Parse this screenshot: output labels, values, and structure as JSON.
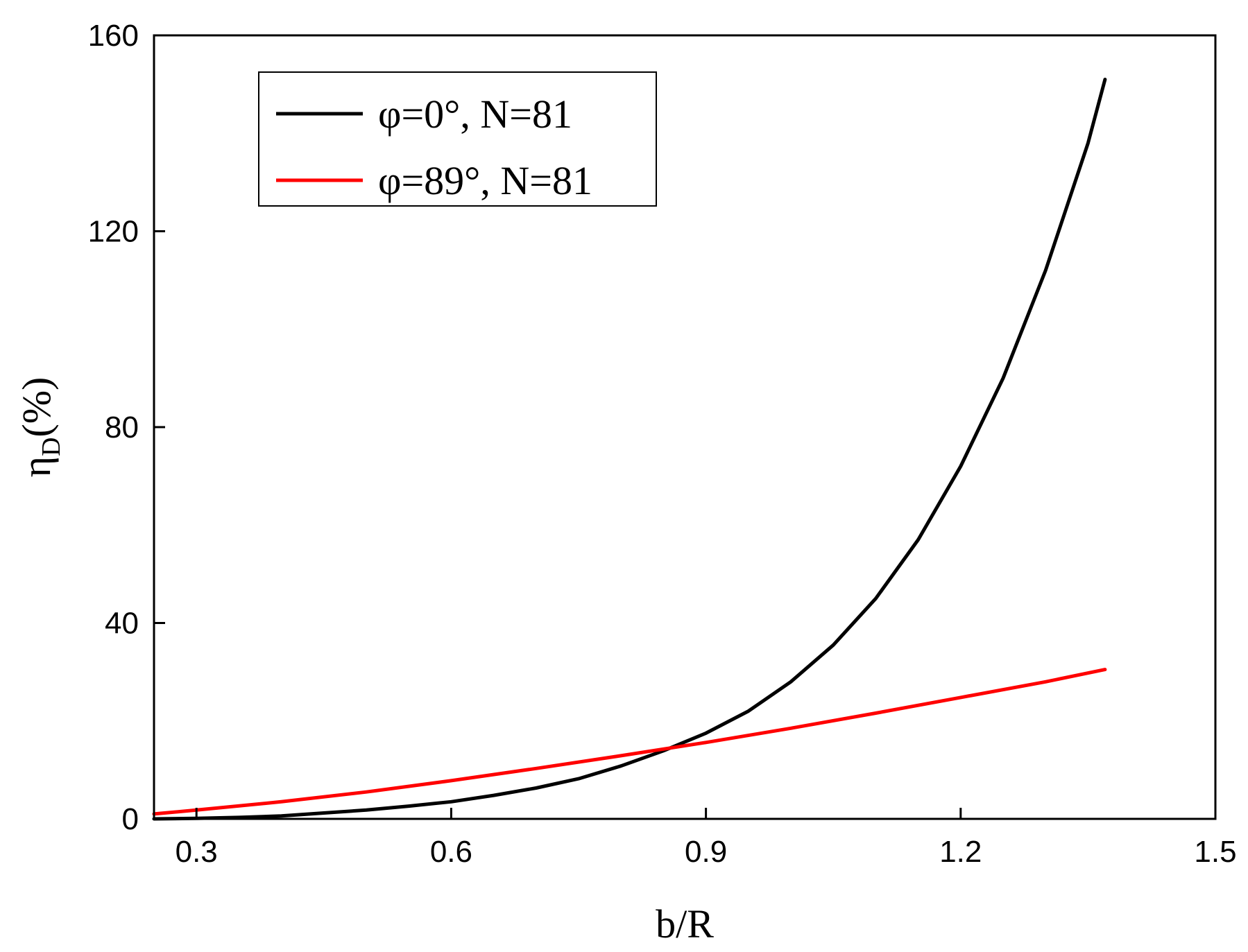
{
  "chart_data": {
    "type": "line",
    "xlabel": "b/R",
    "ylabel": {
      "main": "η",
      "sub": "D",
      "suffix": "(%)"
    },
    "xlim": [
      0.25,
      1.5
    ],
    "ylim": [
      0,
      160
    ],
    "xticks": [
      0.3,
      0.6,
      0.9,
      1.2,
      1.5
    ],
    "yticks": [
      0,
      40,
      80,
      120,
      160
    ],
    "xtick_labels": [
      "0.3",
      "0.6",
      "0.9",
      "1.2",
      "1.5"
    ],
    "ytick_labels": [
      "0",
      "40",
      "80",
      "120",
      "160"
    ],
    "grid": false,
    "legend": {
      "position": "top-left"
    },
    "series": [
      {
        "name": "φ=0°, N=81",
        "color": "#000000",
        "x": [
          0.25,
          0.3,
          0.35,
          0.4,
          0.45,
          0.5,
          0.55,
          0.6,
          0.65,
          0.7,
          0.75,
          0.8,
          0.85,
          0.9,
          0.95,
          1.0,
          1.05,
          1.1,
          1.15,
          1.2,
          1.25,
          1.3,
          1.35,
          1.37
        ],
        "y": [
          0,
          0.1,
          0.3,
          0.6,
          1.2,
          1.8,
          2.6,
          3.5,
          4.8,
          6.3,
          8.2,
          10.8,
          13.9,
          17.5,
          22.0,
          28.0,
          35.5,
          45.0,
          57.0,
          72.0,
          90.0,
          112.0,
          138.0,
          151.0
        ]
      },
      {
        "name": "φ=89°, N=81",
        "color": "#ff0000",
        "x": [
          0.25,
          0.3,
          0.4,
          0.5,
          0.6,
          0.7,
          0.8,
          0.9,
          1.0,
          1.1,
          1.2,
          1.3,
          1.37
        ],
        "y": [
          1.0,
          1.8,
          3.5,
          5.5,
          7.8,
          10.3,
          12.9,
          15.6,
          18.5,
          21.6,
          24.8,
          28.0,
          30.5
        ]
      }
    ]
  }
}
